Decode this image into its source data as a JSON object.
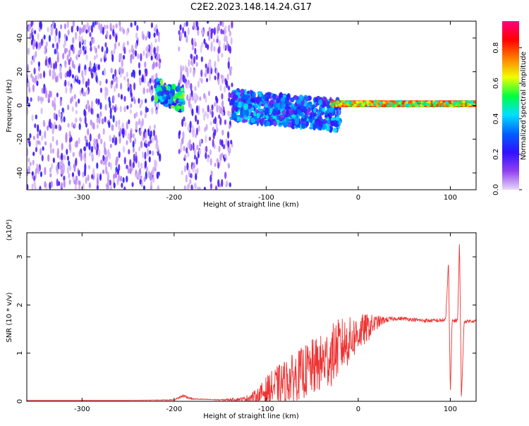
{
  "title": "C2E2.2023.148.14.24.G17",
  "chart_data": [
    {
      "type": "heatmap",
      "name": "spectrogram",
      "xlabel": "Height of straight line (km)",
      "ylabel": "Frequency (Hz)",
      "xlim": [
        -360,
        128
      ],
      "ylim": [
        -50,
        50
      ],
      "xticks": [
        -300,
        -200,
        -100,
        0,
        100
      ],
      "xtick_labels": [
        "-300",
        "-200",
        "-100",
        "0",
        "100"
      ],
      "yticks": [
        -40,
        -20,
        0,
        20,
        40
      ],
      "ytick_labels": [
        "-40",
        "-20",
        "0",
        "20",
        "40"
      ],
      "colorbar": {
        "label": "Normalized spectral amplitude",
        "range": [
          0.0,
          0.95
        ],
        "ticks": [
          0.0,
          0.2,
          0.4,
          0.6,
          0.8
        ],
        "tick_labels": [
          "0.0",
          "0.2",
          "0.4",
          "0.6",
          "0.8"
        ],
        "colormap": [
          "#e8d8f8",
          "#9040f0",
          "#3010ff",
          "#0060ff",
          "#00e0ff",
          "#00ff40",
          "#f0ff00",
          "#ff8000",
          "#ff0000",
          "#ff0080"
        ]
      },
      "regions": [
        {
          "description": "broadband noise",
          "x": [
            -360,
            -215
          ],
          "freq": [
            -50,
            50
          ],
          "amplitude": 0.12
        },
        {
          "description": "broadband noise",
          "x": [
            -195,
            -137
          ],
          "freq": [
            -50,
            50
          ],
          "amplitude": 0.1
        },
        {
          "description": "signal band",
          "x": [
            -220,
            -190
          ],
          "freq": [
            -2,
            20
          ],
          "amplitude": 0.4
        },
        {
          "description": "signal band",
          "x": [
            -137,
            -20
          ],
          "freq": [
            -15,
            15
          ],
          "amplitude": 0.3
        },
        {
          "description": "carrier line",
          "x": [
            -30,
            128
          ],
          "freq": [
            -1,
            3
          ],
          "amplitude": 0.85
        }
      ]
    },
    {
      "type": "line",
      "name": "snr",
      "xlabel": "Height of straight line (km)",
      "ylabel": "SNR (10 * v/v)",
      "multiplier_label": "(x10⁴)",
      "xlim": [
        -360,
        128
      ],
      "ylim": [
        0,
        3.5
      ],
      "xticks": [
        -300,
        -200,
        -100,
        0,
        100
      ],
      "xtick_labels": [
        "-300",
        "-200",
        "-100",
        "0",
        "100"
      ],
      "yticks": [
        0,
        1,
        2,
        3
      ],
      "ytick_labels": [
        "0",
        "1",
        "2",
        "3"
      ],
      "color": "#ee3333",
      "series": [
        {
          "name": "SNR",
          "x": [
            -360,
            -300,
            -250,
            -200,
            -190,
            -180,
            -150,
            -125,
            -110,
            -100,
            -90,
            -80,
            -70,
            -60,
            -50,
            -40,
            -30,
            -20,
            -10,
            0,
            10,
            20,
            30,
            40,
            50,
            60,
            70,
            80,
            90,
            95,
            98,
            100,
            102,
            105,
            108,
            110,
            112,
            115,
            120,
            128
          ],
          "y": [
            0.02,
            0.02,
            0.02,
            0.03,
            0.12,
            0.05,
            0.03,
            0.05,
            0.12,
            0.25,
            0.35,
            0.45,
            0.55,
            0.65,
            0.75,
            0.85,
            1.0,
            1.2,
            1.3,
            1.45,
            1.55,
            1.65,
            1.7,
            1.72,
            1.72,
            1.7,
            1.68,
            1.68,
            1.68,
            1.7,
            2.9,
            0.15,
            1.68,
            1.68,
            1.7,
            3.35,
            0.05,
            1.66,
            1.67,
            1.67
          ],
          "noise": [
            0,
            0,
            0,
            0.01,
            0.04,
            0.01,
            0.01,
            0.04,
            0.15,
            0.3,
            0.4,
            0.45,
            0.5,
            0.55,
            0.6,
            0.6,
            0.65,
            0.6,
            0.5,
            0.4,
            0.3,
            0.15,
            0.06,
            0.04,
            0.04,
            0.04,
            0.04,
            0.04,
            0.04,
            0.05,
            0.05,
            0.05,
            0.05,
            0.04,
            0.04,
            0.04,
            0.04,
            0.03,
            0.03,
            0.03
          ]
        }
      ]
    }
  ]
}
